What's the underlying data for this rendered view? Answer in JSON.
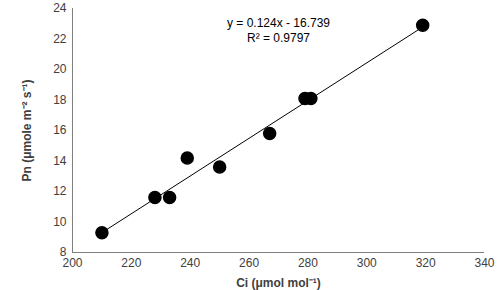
{
  "chart_data": {
    "type": "scatter",
    "x_label": "Ci (μmol mol⁻¹)",
    "y_label": "Pn (μmole m⁻² s⁻¹)",
    "annotations": [
      "y = 0.124x - 16.739",
      "R² = 0.9797"
    ],
    "x": [
      210,
      228,
      233,
      239,
      250,
      267,
      279,
      281,
      319
    ],
    "values": [
      9.3,
      11.6,
      11.6,
      14.2,
      13.6,
      15.8,
      18.1,
      18.1,
      22.9
    ],
    "color": "#000000",
    "marker": "circle",
    "xlim": [
      200,
      340
    ],
    "xticks": [
      200,
      220,
      240,
      260,
      280,
      300,
      320,
      340
    ],
    "ylim": [
      8,
      24
    ],
    "yticks": [
      8,
      10,
      12,
      14,
      16,
      18,
      20,
      22,
      24
    ],
    "grid": false
  }
}
